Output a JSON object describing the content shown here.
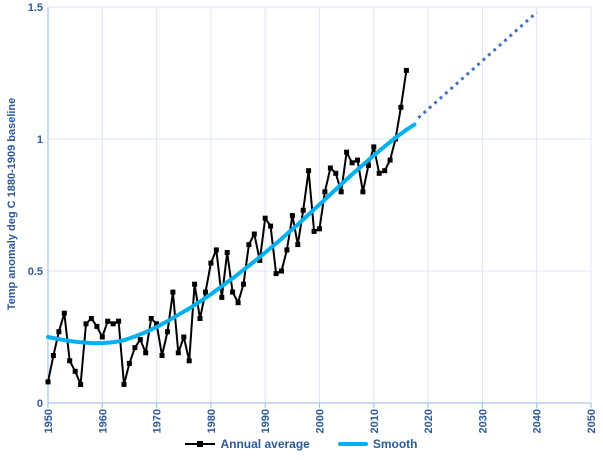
{
  "colors": {
    "text": "#2d5a96",
    "grid": "#dce6f4",
    "axis": "#a9c6e8",
    "background": "#ffffff",
    "annual": "#000000",
    "smooth": "#00b0f0",
    "projection": "#4472c4"
  },
  "chart_data": {
    "type": "line",
    "title": "",
    "xlabel": "",
    "ylabel": "Temp anomaly deg C 1880-1909 baseline",
    "xlim": [
      1950,
      2050
    ],
    "ylim": [
      0,
      1.5
    ],
    "x_ticks": [
      1950,
      1960,
      1970,
      1980,
      1990,
      2000,
      2010,
      2020,
      2030,
      2040,
      2050
    ],
    "y_ticks": [
      0,
      0.5,
      1,
      1.5
    ],
    "y_tick_labels": [
      "0",
      "0.5",
      "1",
      "1.5"
    ],
    "grid": true,
    "legend_position": "bottom",
    "series": [
      {
        "name": "Annual average",
        "color": "#000000",
        "style": "solid",
        "width": 2,
        "marker": "square",
        "marker_size": 5,
        "in_legend": true,
        "x": [
          1950,
          1951,
          1952,
          1953,
          1954,
          1955,
          1956,
          1957,
          1958,
          1959,
          1960,
          1961,
          1962,
          1963,
          1964,
          1965,
          1966,
          1967,
          1968,
          1969,
          1970,
          1971,
          1972,
          1973,
          1974,
          1975,
          1976,
          1977,
          1978,
          1979,
          1980,
          1981,
          1982,
          1983,
          1984,
          1985,
          1986,
          1987,
          1988,
          1989,
          1990,
          1991,
          1992,
          1993,
          1994,
          1995,
          1996,
          1997,
          1998,
          1999,
          2000,
          2001,
          2002,
          2003,
          2004,
          2005,
          2006,
          2007,
          2008,
          2009,
          2010,
          2011,
          2012,
          2013,
          2014,
          2015,
          2016
        ],
        "y": [
          0.08,
          0.18,
          0.27,
          0.34,
          0.16,
          0.12,
          0.07,
          0.3,
          0.32,
          0.29,
          0.25,
          0.31,
          0.3,
          0.31,
          0.07,
          0.15,
          0.21,
          0.24,
          0.19,
          0.32,
          0.3,
          0.18,
          0.27,
          0.42,
          0.19,
          0.25,
          0.16,
          0.45,
          0.32,
          0.42,
          0.53,
          0.58,
          0.4,
          0.57,
          0.42,
          0.38,
          0.45,
          0.6,
          0.64,
          0.54,
          0.7,
          0.67,
          0.49,
          0.5,
          0.58,
          0.71,
          0.6,
          0.73,
          0.88,
          0.65,
          0.66,
          0.8,
          0.89,
          0.87,
          0.8,
          0.95,
          0.91,
          0.92,
          0.8,
          0.9,
          0.97,
          0.87,
          0.88,
          0.92,
          1.0,
          1.12,
          1.26
        ]
      },
      {
        "name": "Smooth",
        "color": "#00b0f0",
        "style": "solid",
        "width": 4,
        "marker": "none",
        "in_legend": true,
        "x": [
          1950,
          1952,
          1954,
          1956,
          1958,
          1960,
          1962,
          1964,
          1966,
          1968,
          1970,
          1972,
          1974,
          1976,
          1978,
          1980,
          1982,
          1984,
          1986,
          1988,
          1990,
          1992,
          1994,
          1996,
          1998,
          2000,
          2002,
          2004,
          2006,
          2008,
          2010,
          2012,
          2014,
          2016,
          2017.5
        ],
        "y": [
          0.25,
          0.242,
          0.235,
          0.23,
          0.227,
          0.227,
          0.23,
          0.238,
          0.252,
          0.268,
          0.288,
          0.31,
          0.334,
          0.358,
          0.384,
          0.412,
          0.442,
          0.472,
          0.504,
          0.536,
          0.57,
          0.604,
          0.64,
          0.676,
          0.714,
          0.752,
          0.79,
          0.828,
          0.866,
          0.902,
          0.938,
          0.972,
          1.005,
          1.035,
          1.055
        ]
      },
      {
        "name": "Smooth projection",
        "color": "#4472c4",
        "style": "dotted",
        "width": 3,
        "marker": "none",
        "in_legend": false,
        "x": [
          2018.2,
          2040
        ],
        "y": [
          1.08,
          1.48
        ]
      }
    ]
  }
}
